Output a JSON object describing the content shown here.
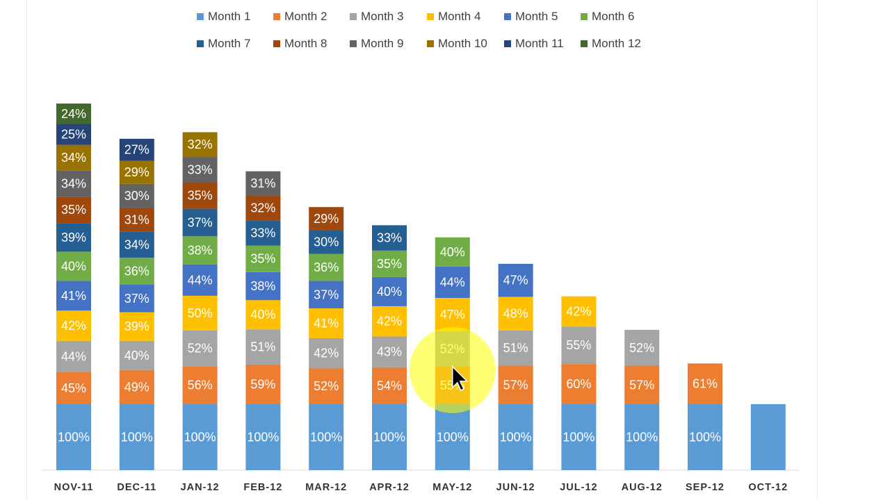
{
  "chart_data": {
    "type": "bar",
    "stacked": true,
    "categories": [
      "NOV-11",
      "DEC-11",
      "JAN-12",
      "FEB-12",
      "MAR-12",
      "APR-12",
      "MAY-12",
      "JUN-12",
      "JUL-12",
      "AUG-12",
      "SEP-12",
      "OCT-12"
    ],
    "series": [
      {
        "name": "Month 1",
        "color": "#5B9BD5",
        "values": [
          "100%",
          "100%",
          "100%",
          "100%",
          "100%",
          "100%",
          "100%",
          "100%",
          "100%",
          "100%",
          "100%",
          "100%"
        ]
      },
      {
        "name": "Month 2",
        "color": "#ED7D31",
        "values": [
          "45%",
          "49%",
          "56%",
          "59%",
          "52%",
          "54%",
          "55%",
          "57%",
          "60%",
          "57%",
          "61%",
          null
        ]
      },
      {
        "name": "Month 3",
        "color": "#A5A5A5",
        "values": [
          "44%",
          "40%",
          "52%",
          "51%",
          "42%",
          "43%",
          "52%",
          "51%",
          "55%",
          "52%",
          null,
          null
        ]
      },
      {
        "name": "Month 4",
        "color": "#FFC000",
        "values": [
          "42%",
          "39%",
          "50%",
          "40%",
          "41%",
          "42%",
          "47%",
          "48%",
          "42%",
          null,
          null,
          null
        ]
      },
      {
        "name": "Month 5",
        "color": "#4472C4",
        "values": [
          "41%",
          "37%",
          "44%",
          "38%",
          "37%",
          "40%",
          "44%",
          "47%",
          null,
          null,
          null,
          null
        ]
      },
      {
        "name": "Month 6",
        "color": "#70AD47",
        "values": [
          "40%",
          "36%",
          "38%",
          "35%",
          "36%",
          "35%",
          "40%",
          null,
          null,
          null,
          null,
          null
        ]
      },
      {
        "name": "Month 7",
        "color": "#255E91",
        "values": [
          "39%",
          "34%",
          "37%",
          "33%",
          "30%",
          "33%",
          null,
          null,
          null,
          null,
          null,
          null
        ]
      },
      {
        "name": "Month 8",
        "color": "#9E480E",
        "values": [
          "35%",
          "31%",
          "35%",
          "32%",
          "29%",
          null,
          null,
          null,
          null,
          null,
          null,
          null
        ]
      },
      {
        "name": "Month 9",
        "color": "#636363",
        "values": [
          "34%",
          "30%",
          "33%",
          "31%",
          null,
          null,
          null,
          null,
          null,
          null,
          null,
          null
        ]
      },
      {
        "name": "Month 10",
        "color": "#997300",
        "values": [
          "34%",
          "29%",
          "32%",
          null,
          null,
          null,
          null,
          null,
          null,
          null,
          null,
          null
        ]
      },
      {
        "name": "Month 11",
        "color": "#264478",
        "values": [
          "25%",
          "27%",
          null,
          null,
          null,
          null,
          null,
          null,
          null,
          null,
          null,
          null
        ]
      },
      {
        "name": "Month 12",
        "color": "#43682B",
        "values": [
          "24%",
          null,
          null,
          null,
          null,
          null,
          null,
          null,
          null,
          null,
          null,
          null
        ]
      }
    ],
    "hidden_labels": [
      [
        11,
        0
      ]
    ],
    "legend_position": "top",
    "grid": false,
    "cursor_highlight": {
      "category": "MAY-12",
      "color": "#FFFF00"
    }
  }
}
